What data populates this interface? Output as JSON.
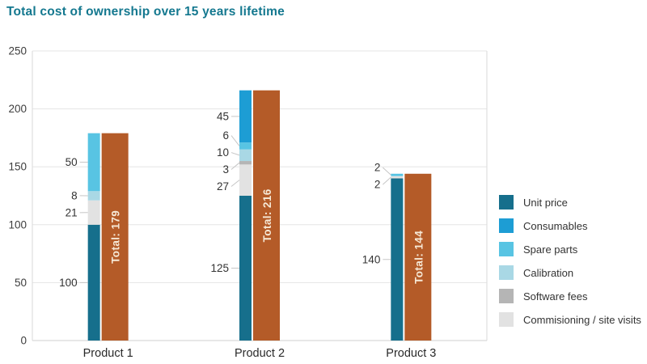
{
  "title": {
    "text": "Total cost of ownership over 15 years lifetime",
    "color": "#14788f"
  },
  "chart_data": {
    "type": "bar",
    "subtype": "stacked-bar-with-adjacent-total-bar",
    "title": "Total cost of ownership over 15 years lifetime",
    "categories": [
      "Product 1",
      "Product 2",
      "Product 3"
    ],
    "series": [
      {
        "name": "Unit price",
        "color": "#166f8c",
        "values": [
          100,
          125,
          140
        ]
      },
      {
        "name": "Consumables",
        "color": "#1d9dd4",
        "values": [
          0,
          45,
          0
        ]
      },
      {
        "name": "Spare parts",
        "color": "#58c4e3",
        "values": [
          50,
          6,
          2
        ]
      },
      {
        "name": "Calibration",
        "color": "#a9d8e5",
        "values": [
          8,
          10,
          0
        ]
      },
      {
        "name": "Software fees",
        "color": "#b5b5b5",
        "values": [
          0,
          3,
          0
        ]
      },
      {
        "name": "Commisioning / site visits",
        "color": "#e2e2e2",
        "values": [
          21,
          27,
          2
        ]
      }
    ],
    "stack_order_bottom_to_top": [
      "Unit price",
      "Commisioning / site visits",
      "Software fees",
      "Calibration",
      "Spare parts",
      "Consumables"
    ],
    "totals": [
      179,
      216,
      144
    ],
    "total_label_prefix": "Total: ",
    "total_bar_color": "#b45b28",
    "total_label_color": "#f6e9d7",
    "y_ticks": [
      0,
      50,
      100,
      150,
      200,
      250
    ],
    "ylim": [
      0,
      250
    ],
    "grid": true,
    "legend_position": "right",
    "style": {
      "grid_color": "#e5e5e5",
      "axis_color": "#cfcfcf",
      "border_color": "#dadada",
      "tick_text_color": "#3d3d3d",
      "category_text_color": "#2a2a2a",
      "segment_label_color": "#333333",
      "connector_color": "#c6c6c6"
    }
  }
}
